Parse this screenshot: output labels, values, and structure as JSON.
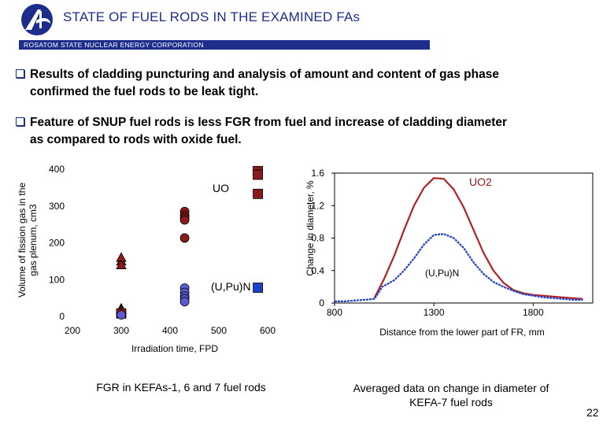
{
  "header": {
    "title": "STATE OF FUEL RODS IN THE EXAMINED FAs",
    "corp": "ROSATOM STATE NUCLEAR ENERGY CORPORATION",
    "colors": {
      "brand": "#1d2d8c"
    }
  },
  "bullets": [
    {
      "line1": "Results of cladding puncturing and analysis of amount and content of gas phase",
      "line2": "confirmed the fuel rods to be leak tight."
    },
    {
      "line1": "Feature of SNUP fuel rods is less FGR from fuel and increase of cladding diameter",
      "line2": "as compared to rods with oxide fuel."
    }
  ],
  "chart_data": [
    {
      "type": "scatter",
      "xlabel": "Irradiation time, FPD",
      "ylabel_line1": "Volume of fission gas in the",
      "ylabel_line2": "gas plenum, cm3",
      "xlim": [
        200,
        600
      ],
      "ylim": [
        0,
        400
      ],
      "x_ticks": [
        "200",
        "300",
        "400",
        "500",
        "600"
      ],
      "y_ticks": [
        "0",
        "100",
        "200",
        "300",
        "400"
      ],
      "annotations": [
        "UO",
        "(U,Pu)N"
      ],
      "series": [
        {
          "name": "UO2 triangles",
          "marker": "triangle",
          "color": "#8b1a1a",
          "points": [
            [
              300,
              150
            ],
            [
              300,
              160
            ],
            [
              300,
              140
            ],
            [
              300,
              22
            ],
            [
              300,
              18
            ]
          ]
        },
        {
          "name": "UO2 circles",
          "marker": "circle",
          "color": "#8b1a1a",
          "points": [
            [
              430,
              285
            ],
            [
              430,
              275
            ],
            [
              430,
              268
            ],
            [
              430,
              262
            ],
            [
              430,
              213
            ],
            [
              300,
              12
            ]
          ]
        },
        {
          "name": "UO2 squares",
          "marker": "square",
          "color": "#8b1a1a",
          "points": [
            [
              580,
              395
            ],
            [
              580,
              385
            ],
            [
              580,
              333
            ],
            [
              300,
              8
            ]
          ]
        },
        {
          "name": "(U,Pu)N circles",
          "marker": "circle",
          "color": "#5b5bd6",
          "points": [
            [
              430,
              77
            ],
            [
              430,
              65
            ],
            [
              430,
              55
            ],
            [
              430,
              48
            ],
            [
              430,
              40
            ],
            [
              300,
              4
            ]
          ]
        },
        {
          "name": "(U,Pu)N squares",
          "marker": "square",
          "color": "#1f3fcf",
          "points": [
            [
              580,
              78
            ]
          ]
        }
      ]
    },
    {
      "type": "line",
      "xlabel": "Distance from the lower part of FR, mm",
      "ylabel": "Change in diameter, %",
      "xlim": [
        800,
        2100
      ],
      "ylim": [
        0,
        1.6
      ],
      "x_ticks": [
        "800",
        "1300",
        "1800"
      ],
      "y_ticks": [
        "0",
        "0.4",
        "0.8",
        "1.2",
        "1.6"
      ],
      "annotations": [
        "UO2",
        "(U,Pu)N"
      ],
      "series": [
        {
          "name": "UO2",
          "color": "#b22222",
          "x": [
            1000,
            1050,
            1100,
            1150,
            1200,
            1250,
            1300,
            1350,
            1400,
            1450,
            1500,
            1550,
            1600,
            1650,
            1700,
            1750,
            1800,
            1850,
            1900,
            1950,
            2000,
            2050
          ],
          "y": [
            0.06,
            0.3,
            0.58,
            0.9,
            1.2,
            1.42,
            1.54,
            1.53,
            1.4,
            1.18,
            0.9,
            0.62,
            0.4,
            0.25,
            0.16,
            0.12,
            0.1,
            0.09,
            0.08,
            0.07,
            0.06,
            0.05
          ]
        },
        {
          "name": "(U,Pu)N",
          "color": "#1f3fcf",
          "x": [
            800,
            850,
            900,
            950,
            1000,
            1020,
            1040,
            1100,
            1150,
            1200,
            1250,
            1300,
            1350,
            1400,
            1450,
            1500,
            1550,
            1600,
            1650,
            1700,
            1750,
            1800,
            1850,
            1900,
            1950,
            2000,
            2050
          ],
          "y": [
            0.02,
            0.02,
            0.03,
            0.04,
            0.05,
            0.12,
            0.2,
            0.28,
            0.4,
            0.55,
            0.72,
            0.84,
            0.85,
            0.8,
            0.68,
            0.5,
            0.36,
            0.26,
            0.2,
            0.15,
            0.11,
            0.09,
            0.07,
            0.06,
            0.05,
            0.04,
            0.04
          ]
        }
      ]
    }
  ],
  "captions": {
    "left": "FGR in KEFAs-1, 6 and 7 fuel rods",
    "right_line1": "Averaged data on change in diameter of",
    "right_line2": "KEFA-7 fuel rods"
  },
  "page_number": "22"
}
